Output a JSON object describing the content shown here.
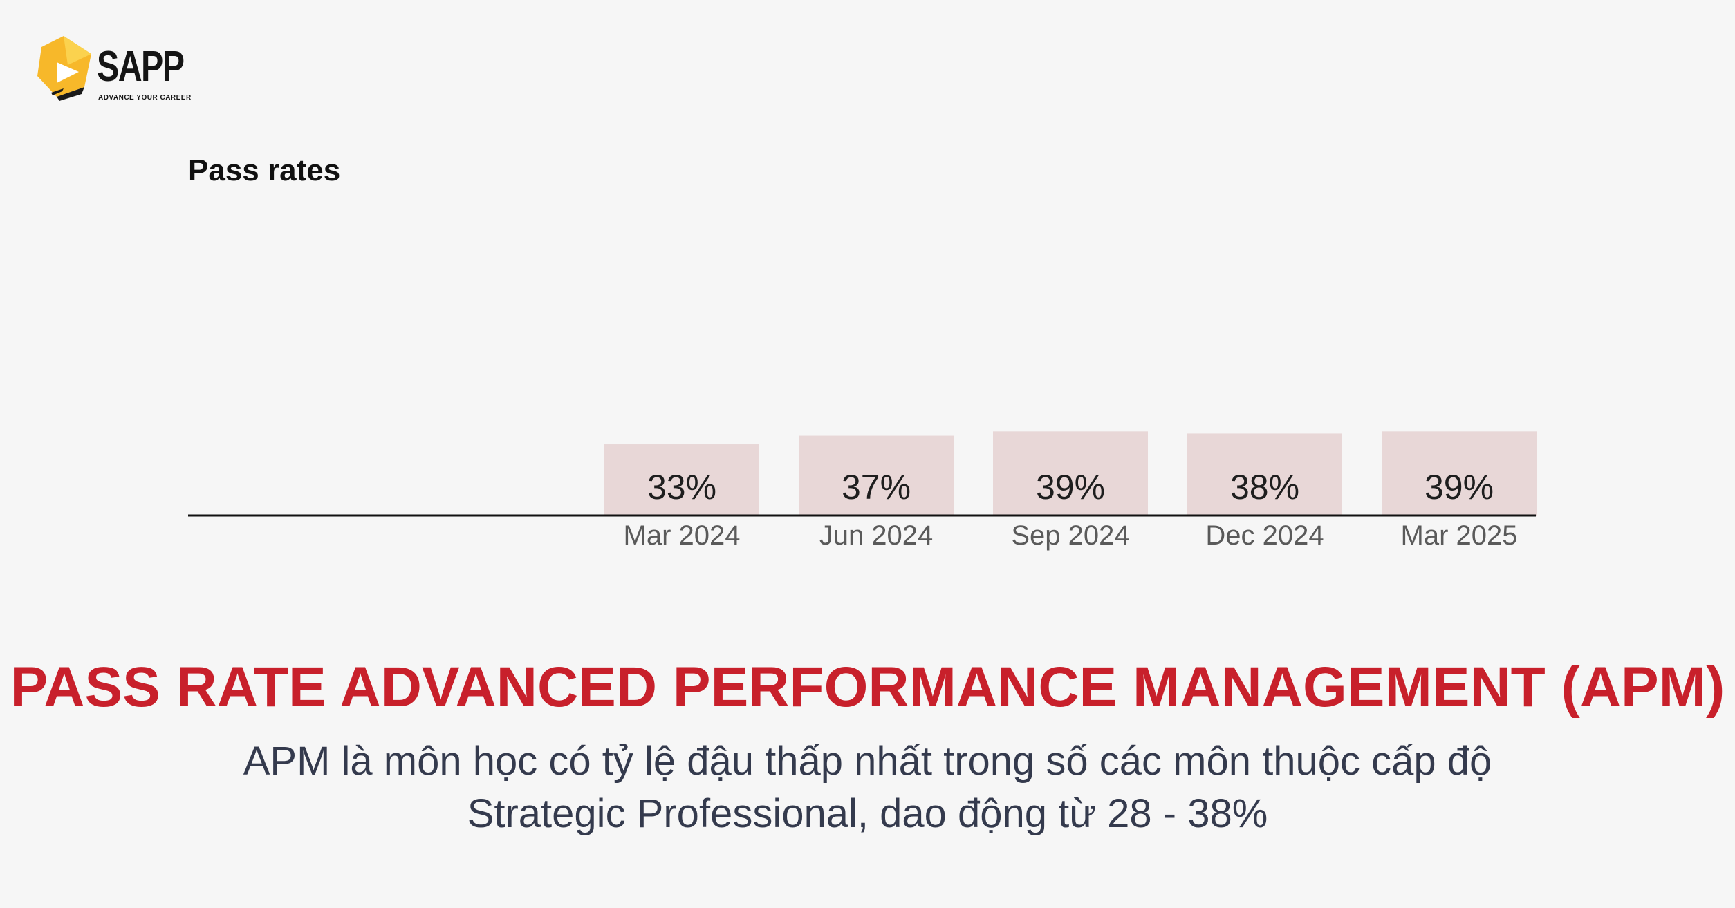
{
  "brand": {
    "name": "SAPP",
    "tagline": "ADVANCE YOUR CAREER",
    "logo_colors": [
      "#f7b82a",
      "#f29a1e",
      "#1a1a1a"
    ]
  },
  "headline": "PASS RATE ADVANCED PERFORMANCE MANAGEMENT (APM)",
  "subtitle": {
    "line1": "APM là môn học có tỷ lệ đậu thấp nhất trong số các môn thuộc cấp độ",
    "line2": "Strategic Professional, dao động từ 28 - 38%"
  },
  "colors": {
    "headline": "#c8202b",
    "bar": "#e8d7d7",
    "axis": "#111111"
  },
  "chart_data": {
    "type": "bar",
    "title": "Pass rates",
    "xlabel": "",
    "ylabel": "",
    "categories": [
      "Mar 2024",
      "Jun 2024",
      "Sep 2024",
      "Dec 2024",
      "Mar 2025"
    ],
    "values": [
      33,
      37,
      39,
      38,
      39
    ],
    "data_labels": [
      "33%",
      "37%",
      "39%",
      "38%",
      "39%"
    ],
    "ylim": [
      0,
      100
    ],
    "grid": false,
    "legend": "none"
  }
}
